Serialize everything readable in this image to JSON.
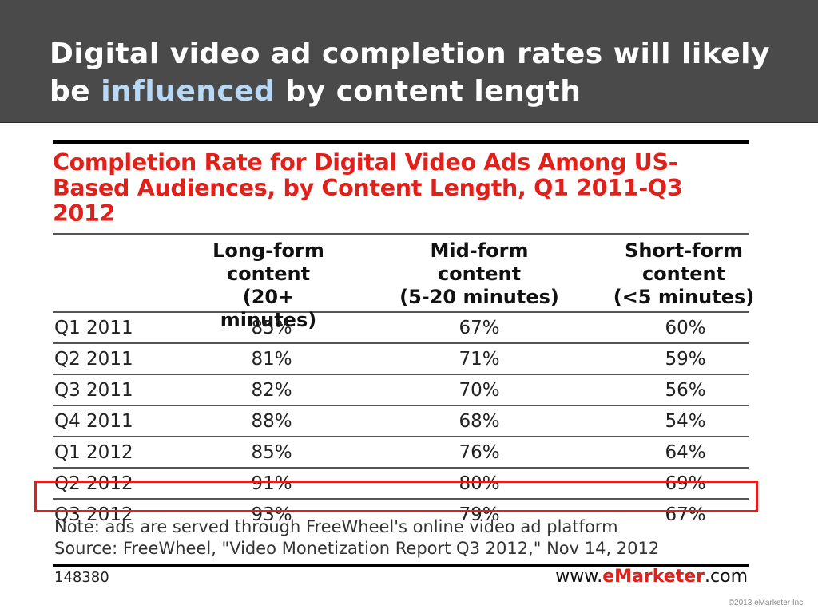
{
  "slide": {
    "title_part1": "Digital video ad completion rates will likely be ",
    "title_highlight": "influenced",
    "title_part2": " by content length",
    "colors": {
      "header_bg": "#4a4a4a",
      "highlight_text": "#b8d9f5",
      "accent_red": "#e0201a"
    }
  },
  "table": {
    "title": "Completion Rate for Digital Video Ads Among US-Based Audiences, by Content Length, Q1 2011-Q3 2012",
    "columns": [
      {
        "line1": "Long-form",
        "line2": "content",
        "line3": "(20+ minutes)"
      },
      {
        "line1": "Mid-form",
        "line2": "content",
        "line3": "(5-20 minutes)"
      },
      {
        "line1": "Short-form",
        "line2": "content",
        "line3": "(<5 minutes)"
      }
    ],
    "rows": [
      {
        "label": "Q1 2011",
        "values": [
          "85%",
          "67%",
          "60%"
        ]
      },
      {
        "label": "Q2 2011",
        "values": [
          "81%",
          "71%",
          "59%"
        ]
      },
      {
        "label": "Q3 2011",
        "values": [
          "82%",
          "70%",
          "56%"
        ]
      },
      {
        "label": "Q4 2011",
        "values": [
          "88%",
          "68%",
          "54%"
        ]
      },
      {
        "label": "Q1 2012",
        "values": [
          "85%",
          "76%",
          "64%"
        ]
      },
      {
        "label": "Q2 2012",
        "values": [
          "91%",
          "80%",
          "69%"
        ]
      },
      {
        "label": "Q3 2012",
        "values": [
          "93%",
          "79%",
          "67%"
        ]
      }
    ],
    "highlighted_row": "Q3 2012",
    "note": "Note: ads are served through FreeWheel's online video ad platform",
    "source": "Source: FreeWheel, \"Video Monetization Report Q3 2012,\" Nov 14, 2012",
    "chart_id": "148380"
  },
  "footer": {
    "brand_prefix": "www.",
    "brand_emphasis": "eMarketer",
    "brand_suffix": ".com",
    "copyright": "©2013 eMarketer Inc."
  }
}
